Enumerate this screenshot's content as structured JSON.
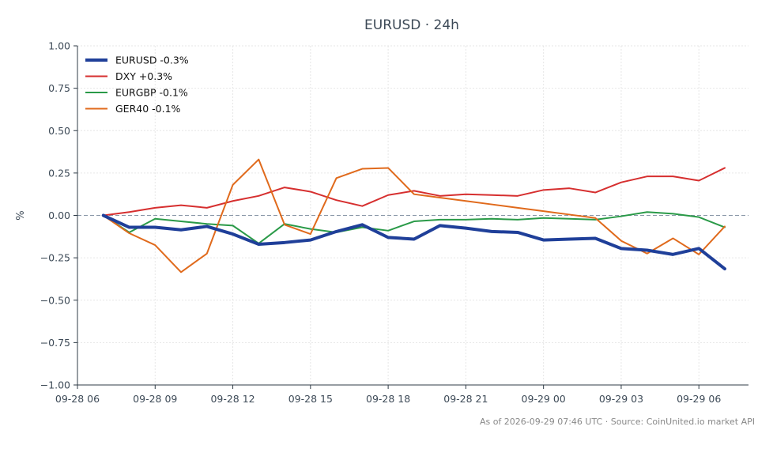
{
  "chart_data": {
    "type": "line",
    "title": "EURUSD · 24h",
    "xlabel": "",
    "ylabel": "%",
    "ylim": [
      -1.0,
      1.0
    ],
    "yticks": [
      -1.0,
      -0.75,
      -0.5,
      -0.25,
      0.0,
      0.25,
      0.5,
      0.75,
      1.0
    ],
    "ytick_labels": [
      "−1.00",
      "−0.75",
      "−0.50",
      "−0.25",
      "0.00",
      "0.25",
      "0.50",
      "0.75",
      "1.00"
    ],
    "xlim": [
      "2026-09-28 06:00",
      "2026-09-29 07:55"
    ],
    "xticks": [
      "2026-09-28 06:00",
      "2026-09-28 09:00",
      "2026-09-28 12:00",
      "2026-09-28 15:00",
      "2026-09-28 18:00",
      "2026-09-28 21:00",
      "2026-09-29 00:00",
      "2026-09-29 03:00",
      "2026-09-29 06:00"
    ],
    "xtick_labels": [
      "09-28 06",
      "09-28 09",
      "09-28 12",
      "09-28 15",
      "09-28 18",
      "09-28 21",
      "09-29 00",
      "09-29 03",
      "09-29 06"
    ],
    "grid": true,
    "zero_line": true,
    "legend_position": "top-left",
    "x": [
      "2026-09-28 07:00",
      "2026-09-28 08:00",
      "2026-09-28 09:00",
      "2026-09-28 10:00",
      "2026-09-28 11:00",
      "2026-09-28 12:00",
      "2026-09-28 13:00",
      "2026-09-28 14:00",
      "2026-09-28 15:00",
      "2026-09-28 16:00",
      "2026-09-28 17:00",
      "2026-09-28 18:00",
      "2026-09-28 19:00",
      "2026-09-28 20:00",
      "2026-09-28 21:00",
      "2026-09-28 22:00",
      "2026-09-28 23:00",
      "2026-09-29 00:00",
      "2026-09-29 01:00",
      "2026-09-29 02:00",
      "2026-09-29 03:00",
      "2026-09-29 04:00",
      "2026-09-29 05:00",
      "2026-09-29 06:00",
      "2026-09-29 07:00"
    ],
    "series": [
      {
        "name": "EURUSD -0.3%",
        "color": "#1f3f99",
        "width": 4,
        "values": [
          0.0,
          -0.07,
          -0.07,
          -0.085,
          -0.065,
          -0.11,
          -0.17,
          -0.16,
          -0.145,
          -0.095,
          -0.055,
          -0.13,
          -0.14,
          -0.06,
          -0.075,
          -0.095,
          -0.1,
          -0.145,
          -0.14,
          -0.135,
          -0.195,
          -0.205,
          -0.23,
          -0.195,
          -0.315
        ]
      },
      {
        "name": "DXY +0.3%",
        "color": "#d62f2f",
        "width": 2,
        "values": [
          0.0,
          0.02,
          0.045,
          0.06,
          0.045,
          0.085,
          0.115,
          0.165,
          0.14,
          0.09,
          0.055,
          0.12,
          0.145,
          0.115,
          0.125,
          0.12,
          0.115,
          0.15,
          0.16,
          0.135,
          0.195,
          0.23,
          0.23,
          0.205,
          0.28
        ]
      },
      {
        "name": "EURGBP -0.1%",
        "color": "#2a9a48",
        "width": 2,
        "values": [
          0.0,
          -0.1,
          -0.02,
          -0.035,
          -0.05,
          -0.06,
          -0.165,
          -0.05,
          -0.08,
          -0.1,
          -0.07,
          -0.09,
          -0.035,
          -0.025,
          -0.025,
          -0.02,
          -0.025,
          -0.015,
          -0.02,
          -0.025,
          -0.005,
          0.02,
          0.01,
          -0.01,
          -0.07
        ]
      },
      {
        "name": "GER40 -0.1%",
        "color": "#e06a1c",
        "width": 2,
        "values": [
          0.0,
          -0.105,
          -0.175,
          -0.335,
          -0.225,
          0.18,
          0.33,
          -0.055,
          -0.11,
          0.22,
          0.275,
          0.28,
          0.125,
          0.105,
          0.085,
          0.065,
          0.045,
          0.025,
          0.005,
          -0.015,
          -0.15,
          -0.225,
          -0.135,
          -0.23,
          -0.065
        ]
      }
    ],
    "footer": "As of 2026-09-29 07:46 UTC · Source: CoinUnited.io market API"
  }
}
